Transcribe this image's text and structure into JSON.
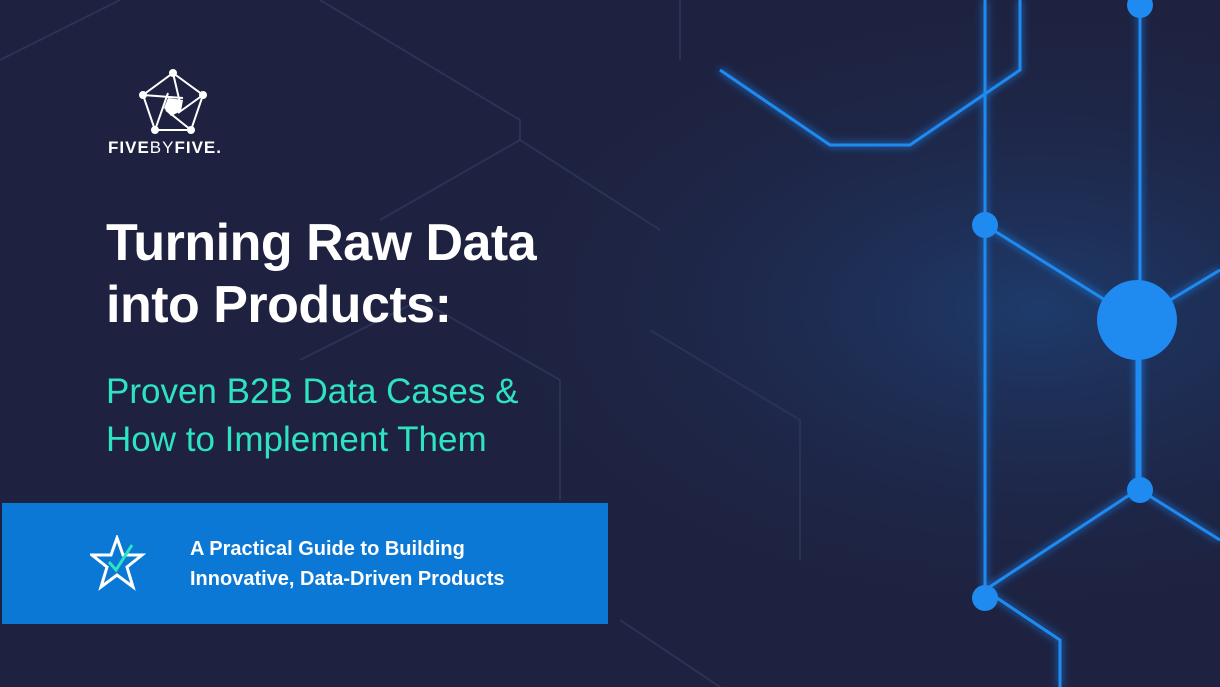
{
  "brand": {
    "name_bold1": "FIVE",
    "name_thin": "BY",
    "name_bold2": "FIVE",
    "name_dot": "."
  },
  "title": {
    "line1": "Turning Raw Data",
    "line2": "into Products:"
  },
  "subtitle": {
    "line1": "Proven B2B Data Cases &",
    "line2": "How to Implement Them"
  },
  "banner": {
    "icon": "star-check-icon",
    "line1": "A Practical Guide to Building",
    "line2": "Innovative, Data-Driven Products"
  },
  "colors": {
    "background": "#1e2240",
    "accent": "#2de3c0",
    "banner": "#0a78d4",
    "network": "#1a7fe8"
  }
}
